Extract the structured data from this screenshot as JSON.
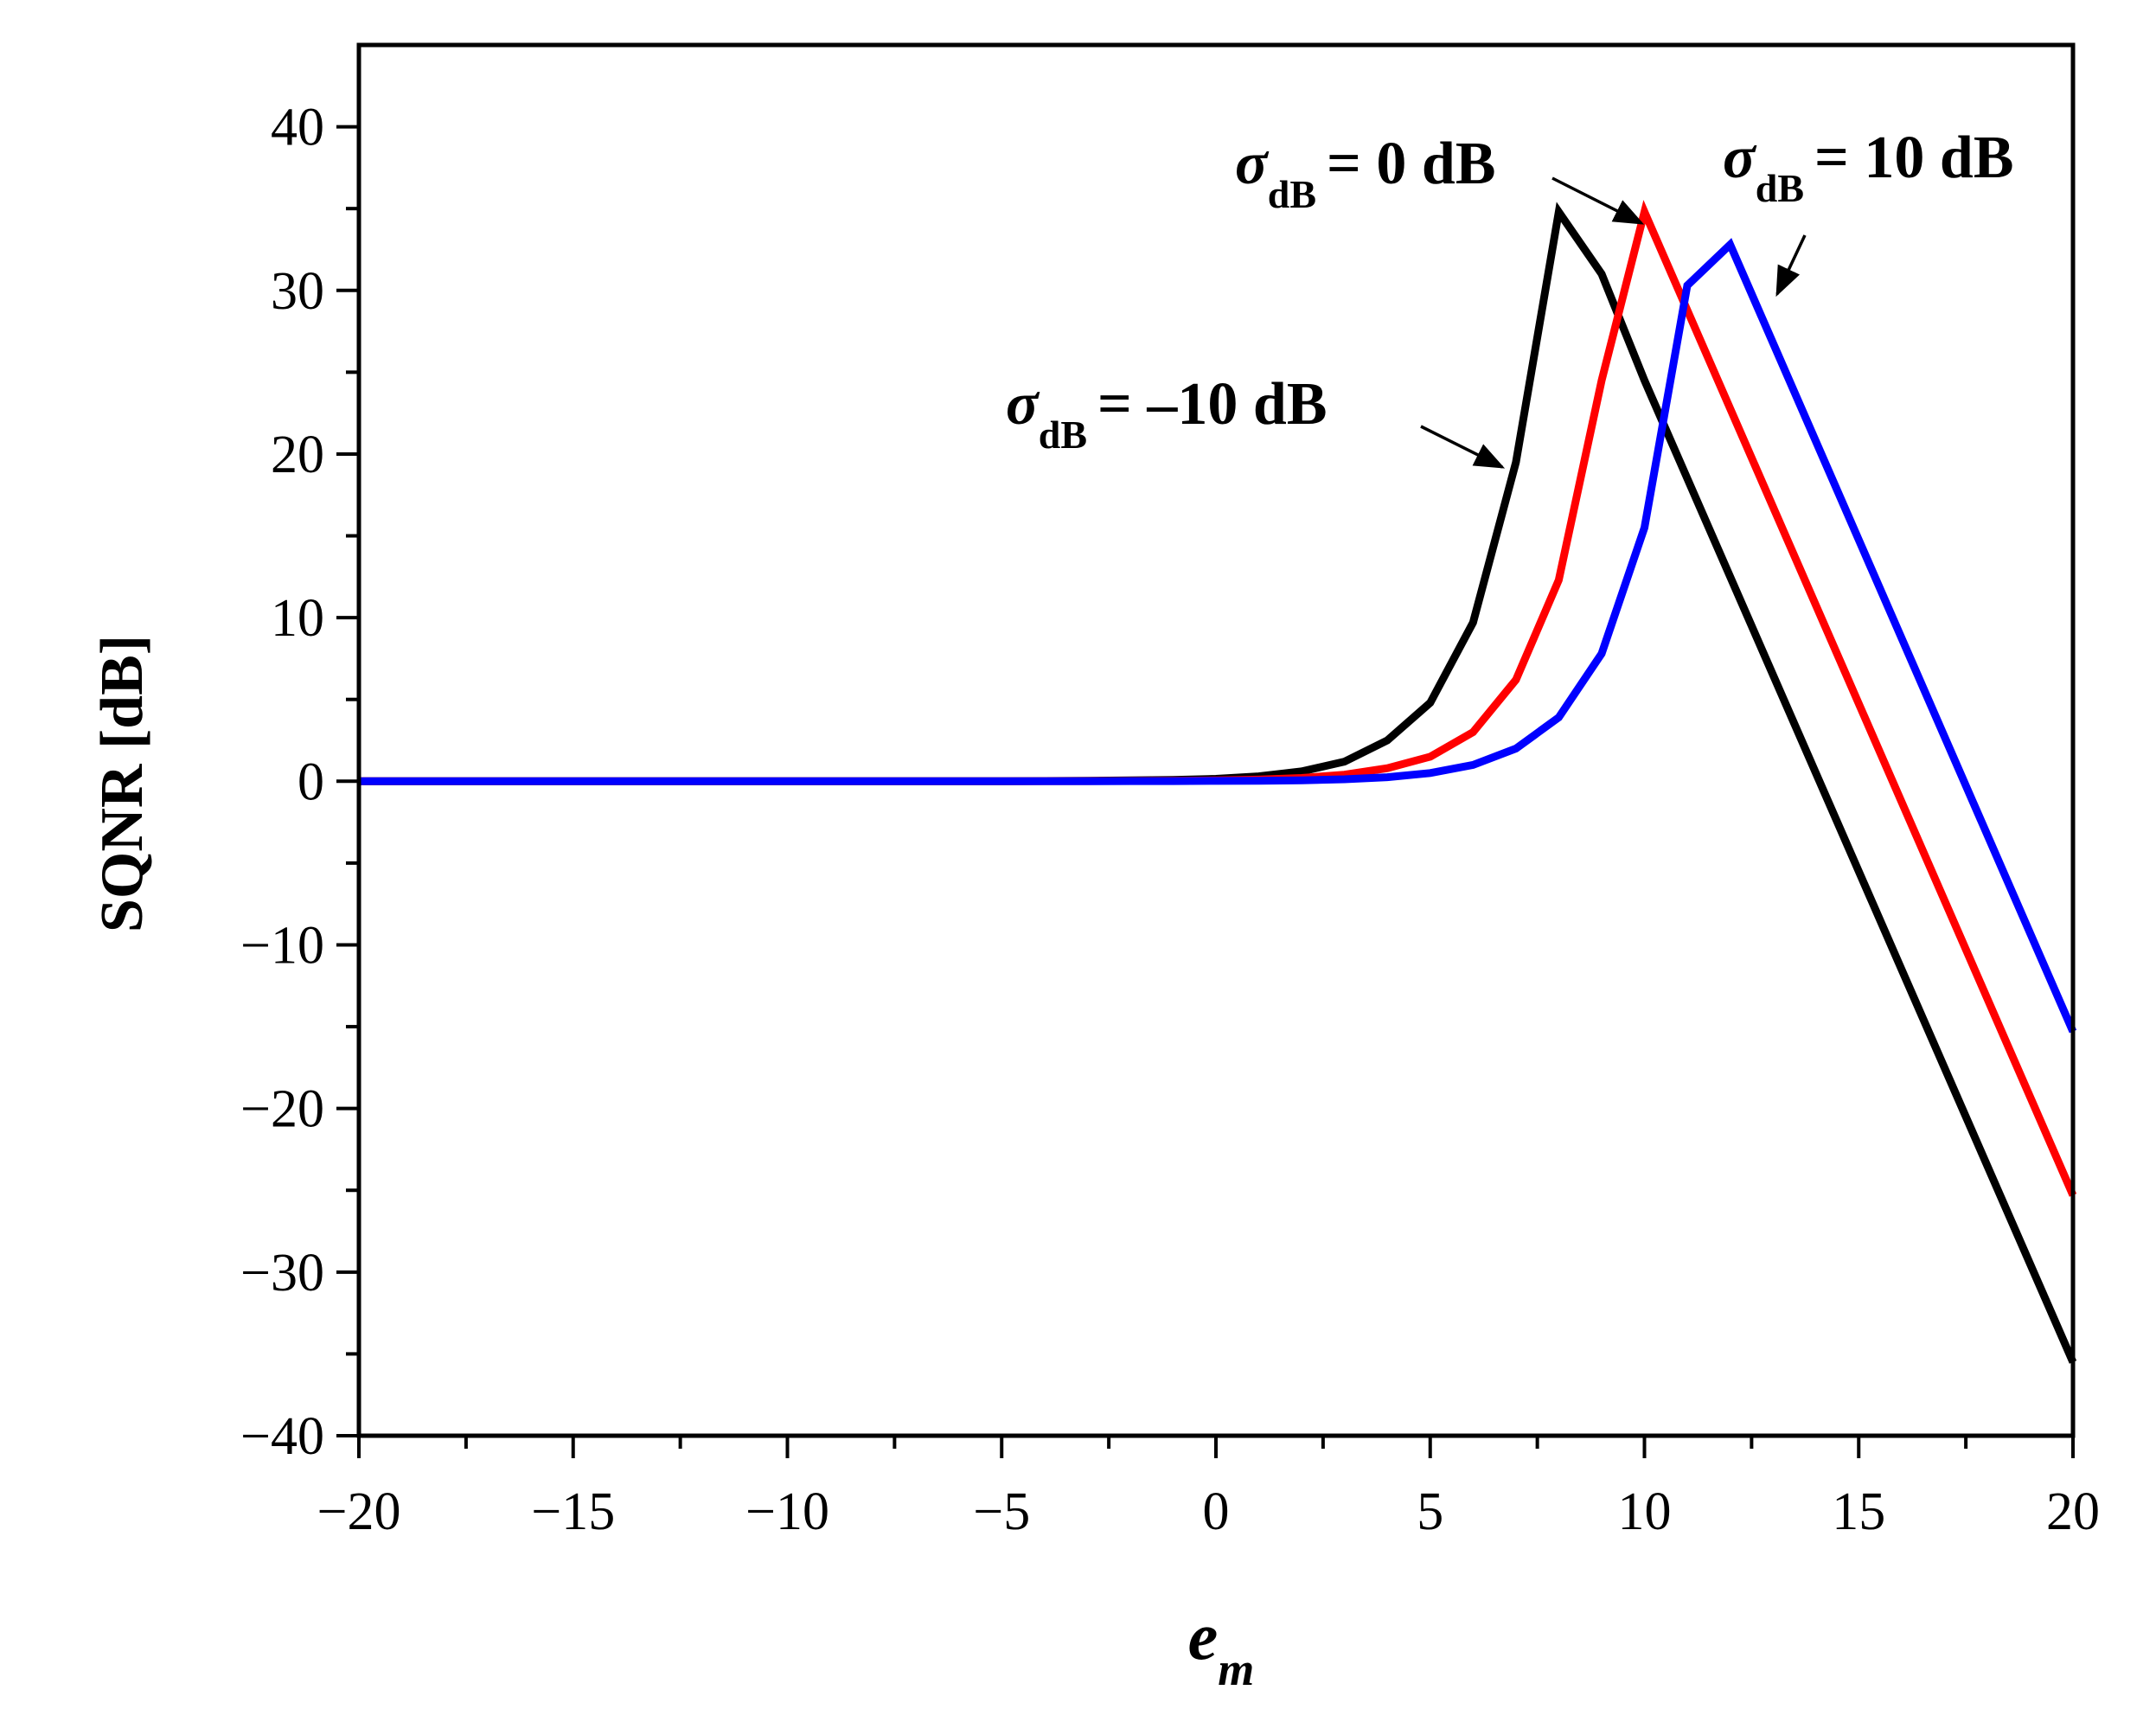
{
  "chart_data": {
    "type": "line",
    "title": "",
    "xlabel": "e",
    "xlabel_sub": "m",
    "ylabel": "SQNR [dB]",
    "xlim": [
      -20,
      20
    ],
    "ylim": [
      -40,
      45
    ],
    "x_ticks": [
      -20,
      -15,
      -10,
      -5,
      0,
      5,
      10,
      15,
      20
    ],
    "x_tick_labels": [
      "−20",
      "−15",
      "−10",
      "−5",
      "0",
      "5",
      "10",
      "15",
      "20"
    ],
    "y_ticks": [
      -40,
      -30,
      -20,
      -10,
      0,
      10,
      20,
      30,
      40
    ],
    "y_tick_labels": [
      "−40",
      "−30",
      "−20",
      "−10",
      "0",
      "10",
      "20",
      "30",
      "40"
    ],
    "grid": false,
    "series": [
      {
        "color": "#000000",
        "x": [
          -20,
          -15,
          -10,
          -5,
          -3,
          -2,
          -1,
          0,
          1,
          2,
          3,
          4,
          5,
          6,
          7,
          8,
          9,
          10,
          20
        ],
        "y": [
          0,
          0,
          0,
          0,
          0.03,
          0.05,
          0.08,
          0.15,
          0.3,
          0.6,
          1.2,
          2.5,
          4.8,
          9.7,
          19.5,
          34.8,
          31,
          24.5,
          -35.5
        ]
      },
      {
        "color": "#ff0000",
        "x": [
          -20,
          -15,
          -10,
          -5,
          -3,
          -2,
          -1,
          0,
          1,
          2,
          3,
          4,
          5,
          6,
          7,
          8,
          9,
          10,
          20
        ],
        "y": [
          0,
          0,
          0,
          0,
          0.01,
          0.02,
          0.03,
          0.05,
          0.1,
          0.2,
          0.4,
          0.8,
          1.5,
          3,
          6.2,
          12.3,
          24.5,
          34.8,
          -25.3
        ]
      },
      {
        "color": "#0000ff",
        "x": [
          -20,
          -15,
          -10,
          -5,
          -3,
          -2,
          -1,
          0,
          1,
          2,
          3,
          4,
          5,
          6,
          7,
          8,
          9,
          10,
          11,
          12,
          20
        ],
        "y": [
          0,
          0,
          0,
          0,
          0,
          0.01,
          0.01,
          0.02,
          0.03,
          0.06,
          0.12,
          0.25,
          0.5,
          1,
          2,
          3.9,
          7.8,
          15.5,
          30.3,
          32.8,
          -15.3
        ]
      }
    ],
    "annotations": [
      {
        "sigma": "σ",
        "sub": "dB",
        "value": "= 0 dB"
      },
      {
        "sigma": "σ",
        "sub": "dB",
        "value": "= 10 dB"
      },
      {
        "sigma": "σ",
        "sub": "dB",
        "value": "= –10 dB"
      }
    ]
  }
}
